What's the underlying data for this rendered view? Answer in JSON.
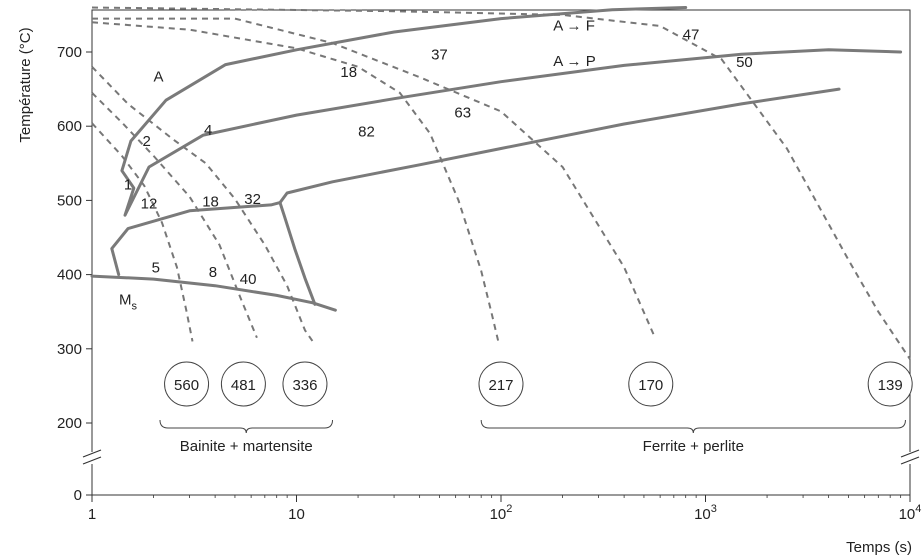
{
  "chart_data": {
    "type": "line",
    "title": "",
    "xlabel": "Temps (s)",
    "ylabel": "Température (°C)",
    "xscale": "log",
    "xlim": [
      1,
      10000
    ],
    "ylim": [
      0,
      760
    ],
    "axis_break": "between 0 and 200 °C (both axes)",
    "x_ticks": [
      {
        "value": 1,
        "base": "1",
        "exp": ""
      },
      {
        "value": 10,
        "base": "10",
        "exp": ""
      },
      {
        "value": 100,
        "base": "10",
        "exp": "2"
      },
      {
        "value": 1000,
        "base": "10",
        "exp": "3"
      },
      {
        "value": 10000,
        "base": "10",
        "exp": "4"
      }
    ],
    "y_ticks": [
      {
        "value": 0,
        "label": "0"
      },
      {
        "value": 200,
        "label": "200"
      },
      {
        "value": 300,
        "label": "300"
      },
      {
        "value": 400,
        "label": "400"
      },
      {
        "value": 500,
        "label": "500"
      },
      {
        "value": 600,
        "label": "600"
      },
      {
        "value": 700,
        "label": "700"
      }
    ],
    "transformation_curves": [
      {
        "points": [
          [
            1.6,
            517
          ],
          [
            1.4,
            540
          ],
          [
            1.55,
            580
          ],
          [
            2.3,
            635
          ],
          [
            4.5,
            683
          ],
          [
            10,
            703
          ],
          [
            30,
            727
          ],
          [
            100,
            745
          ],
          [
            350,
            757
          ],
          [
            800,
            760
          ]
        ]
      },
      {
        "points": [
          [
            1.6,
            516
          ],
          [
            1.45,
            480
          ],
          [
            1.9,
            545
          ],
          [
            3.5,
            588
          ],
          [
            10,
            615
          ],
          [
            30,
            637
          ],
          [
            100,
            660
          ],
          [
            400,
            682
          ],
          [
            1500,
            697
          ],
          [
            4000,
            703
          ],
          [
            9000,
            700
          ]
        ]
      },
      {
        "points": [
          [
            1.35,
            400
          ],
          [
            1.25,
            435
          ],
          [
            1.5,
            462
          ],
          [
            3,
            486
          ],
          [
            6,
            492
          ],
          [
            7.5,
            494
          ],
          [
            8.3,
            497
          ],
          [
            9,
            510
          ],
          [
            15,
            525
          ],
          [
            40,
            548
          ],
          [
            100,
            570
          ],
          [
            400,
            603
          ],
          [
            1500,
            630
          ],
          [
            4500,
            650
          ]
        ]
      },
      {
        "points": [
          [
            8.3,
            497
          ],
          [
            8.7,
            480
          ],
          [
            9.8,
            435
          ],
          [
            11,
            395
          ],
          [
            12.3,
            360
          ]
        ]
      },
      {
        "points": [
          [
            1,
            398
          ],
          [
            2,
            394
          ],
          [
            4,
            385
          ],
          [
            8,
            372
          ],
          [
            12,
            362
          ],
          [
            15.5,
            352
          ]
        ]
      }
    ],
    "cooling_curves": [
      {
        "hardness": "560",
        "points": [
          [
            1,
            604
          ],
          [
            1.4,
            560
          ],
          [
            1.8,
            520
          ],
          [
            2.2,
            470
          ],
          [
            2.6,
            410
          ],
          [
            2.9,
            350
          ],
          [
            3.1,
            310
          ]
        ]
      },
      {
        "hardness": "481",
        "points": [
          [
            1,
            645
          ],
          [
            1.4,
            605
          ],
          [
            2,
            560
          ],
          [
            3,
            505
          ],
          [
            4.2,
            440
          ],
          [
            5.3,
            370
          ],
          [
            6.4,
            315
          ]
        ]
      },
      {
        "hardness": "336",
        "points": [
          [
            1,
            680
          ],
          [
            1.5,
            630
          ],
          [
            2.5,
            582
          ],
          [
            3.6,
            550
          ],
          [
            5,
            502
          ],
          [
            7,
            440
          ],
          [
            9,
            385
          ],
          [
            11,
            325
          ],
          [
            12,
            310
          ]
        ]
      },
      {
        "hardness": "217",
        "points": [
          [
            1,
            740
          ],
          [
            3,
            730
          ],
          [
            10,
            705
          ],
          [
            20,
            680
          ],
          [
            32,
            645
          ],
          [
            45,
            590
          ],
          [
            62,
            500
          ],
          [
            80,
            405
          ],
          [
            90,
            348
          ],
          [
            97,
            310
          ]
        ]
      },
      {
        "hardness": "170",
        "points": [
          [
            1,
            745
          ],
          [
            5,
            745
          ],
          [
            15,
            712
          ],
          [
            40,
            666
          ],
          [
            100,
            620
          ],
          [
            200,
            545
          ],
          [
            400,
            410
          ],
          [
            560,
            318
          ]
        ]
      },
      {
        "hardness": "139",
        "points": [
          [
            1,
            760
          ],
          [
            30,
            755
          ],
          [
            200,
            750
          ],
          [
            600,
            735
          ],
          [
            1200,
            690
          ],
          [
            2500,
            570
          ],
          [
            5000,
            420
          ],
          [
            7000,
            350
          ],
          [
            10000,
            286
          ]
        ]
      }
    ],
    "cooling_curve_labels": [
      {
        "text": "1",
        "x": 1.5,
        "y": 515
      },
      {
        "text": "2",
        "x": 1.85,
        "y": 573
      },
      {
        "text": "4",
        "x": 3.7,
        "y": 588
      },
      {
        "text": "12",
        "x": 1.9,
        "y": 489
      },
      {
        "text": "18",
        "x": 3.8,
        "y": 492
      },
      {
        "text": "32",
        "x": 6.1,
        "y": 495
      },
      {
        "text": "5",
        "x": 2.05,
        "y": 403
      },
      {
        "text": "8",
        "x": 3.9,
        "y": 397
      },
      {
        "text": "40",
        "x": 5.8,
        "y": 387
      },
      {
        "text": "18",
        "x": 18,
        "y": 666
      },
      {
        "text": "37",
        "x": 50,
        "y": 690
      },
      {
        "text": "82",
        "x": 22,
        "y": 586
      },
      {
        "text": "63",
        "x": 65,
        "y": 612
      },
      {
        "text": "47",
        "x": 850,
        "y": 717
      },
      {
        "text": "50",
        "x": 1550,
        "y": 680
      }
    ],
    "region_labels": [
      {
        "text": "A",
        "x": 2,
        "y": 660
      },
      {
        "text": "A → F",
        "x": 180,
        "y": 729
      },
      {
        "text": "A → P",
        "x": 180,
        "y": 681
      }
    ],
    "ms_label": {
      "text": "M",
      "sub": "s",
      "x": 1.5,
      "y": 360
    },
    "hardness_values": [
      {
        "text": "560",
        "x": 2.9
      },
      {
        "text": "481",
        "x": 5.5
      },
      {
        "text": "336",
        "x": 11
      },
      {
        "text": "217",
        "x": 100
      },
      {
        "text": "170",
        "x": 540
      },
      {
        "text": "139",
        "x": 8000
      }
    ],
    "groups": [
      {
        "label": "Bainite + martensite",
        "x_from": 2.15,
        "x_to": 15
      },
      {
        "label": "Ferrite + perlite",
        "x_from": 80,
        "x_to": 9500
      }
    ]
  }
}
